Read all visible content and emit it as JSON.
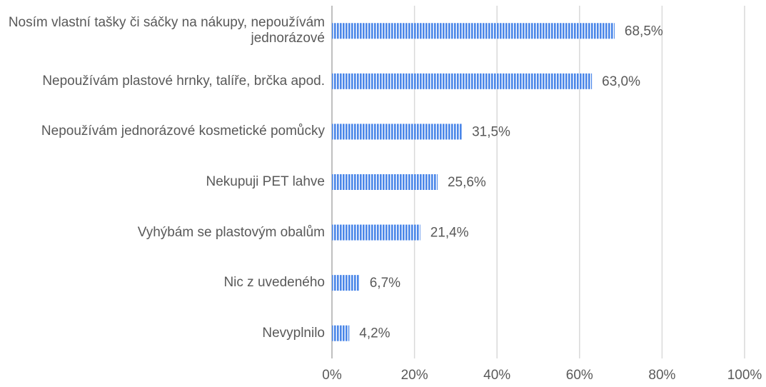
{
  "chart_data": {
    "type": "bar",
    "orientation": "horizontal",
    "categories": [
      "Nosím vlastní tašky či sáčky na nákupy, nepoužívám jednorázové",
      "Nepoužívám plastové hrnky, talíře, brčka apod.",
      "Nepoužívám jednorázové kosmetické pomůcky",
      "Nekupuji PET lahve",
      "Vyhýbám se plastovým obalům",
      "Nic z uvedeného",
      "Nevyplnilo"
    ],
    "values": [
      68.5,
      63.0,
      31.5,
      25.6,
      21.4,
      6.7,
      4.2
    ],
    "value_labels": [
      "68,5%",
      "63,0%",
      "31,5%",
      "25,6%",
      "21,4%",
      "6,7%",
      "4,2%"
    ],
    "color": "#4a86e8",
    "xlim": [
      0,
      100
    ],
    "xticks": [
      {
        "value": 0,
        "label": "0%"
      },
      {
        "value": 20,
        "label": "20%"
      },
      {
        "value": 40,
        "label": "40%"
      },
      {
        "value": 60,
        "label": "60%"
      },
      {
        "value": 80,
        "label": "80%"
      },
      {
        "value": 100,
        "label": "100%"
      }
    ],
    "grid": true
  }
}
